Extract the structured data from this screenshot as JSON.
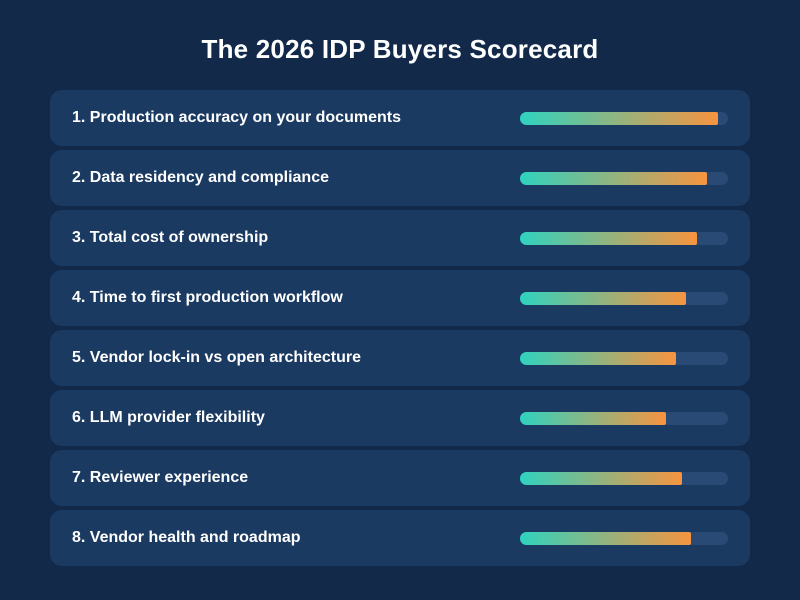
{
  "title": "The 2026 IDP Buyers Scorecard",
  "colors": {
    "background": "#12294a",
    "row": "#1b3a62",
    "track": "#294a74",
    "gradient_start": "#2fd3bf",
    "gradient_end": "#f7943f",
    "text": "#ffffff"
  },
  "chart_data": {
    "type": "bar",
    "orientation": "horizontal",
    "title": "The 2026 IDP Buyers Scorecard",
    "categories": [
      "1. Production accuracy on your documents",
      "2. Data residency and compliance",
      "3. Total cost of ownership",
      "4. Time to first production workflow",
      "5. Vendor lock-in vs open architecture",
      "6. LLM provider flexibility",
      "7. Reviewer experience",
      "8. Vendor health and roadmap"
    ],
    "values": [
      95,
      90,
      85,
      80,
      75,
      70,
      78,
      82
    ],
    "xlim": [
      0,
      100
    ],
    "axes_shown": false,
    "grid": false,
    "legend": "none"
  }
}
